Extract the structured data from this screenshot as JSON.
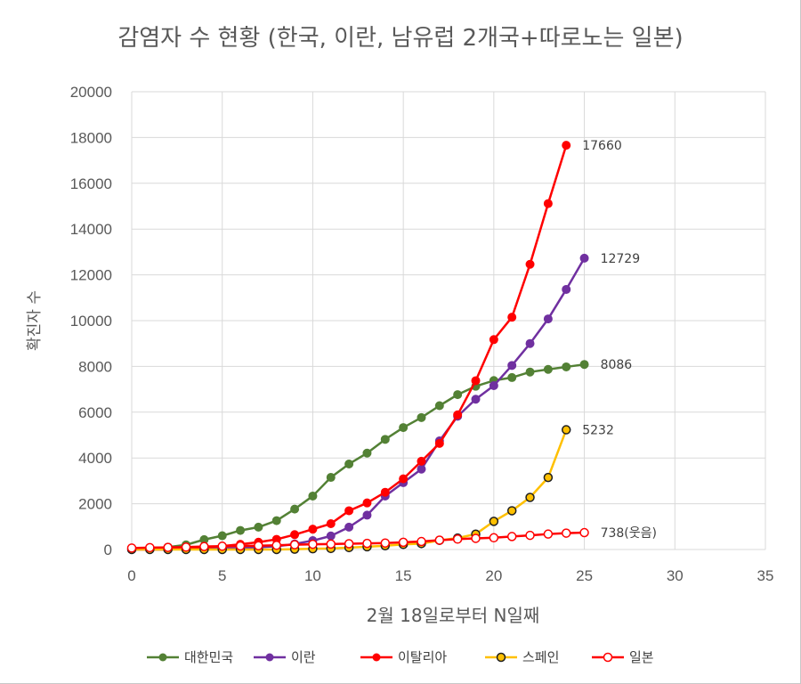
{
  "chart_data": {
    "type": "line",
    "title": "감염자 수 현황 (한국, 이란, 남유럽 2개국+따로노는 일본)",
    "xlabel": "2월 18일로부터 N일째",
    "ylabel": "확진자 수",
    "xlim": [
      0,
      35
    ],
    "ylim": [
      0,
      20000
    ],
    "xticks": [
      0,
      5,
      10,
      15,
      20,
      25,
      30,
      35
    ],
    "yticks": [
      0,
      2000,
      4000,
      6000,
      8000,
      10000,
      12000,
      14000,
      16000,
      18000,
      20000
    ],
    "grid": true,
    "legend_position": "bottom",
    "series": [
      {
        "name": "대한민국",
        "color": "#538135",
        "marker": "filled",
        "x": [
          0,
          1,
          2,
          3,
          4,
          5,
          6,
          7,
          8,
          9,
          10,
          11,
          12,
          13,
          14,
          15,
          16,
          17,
          18,
          19,
          20,
          21,
          22,
          23,
          24,
          25
        ],
        "values": [
          31,
          51,
          104,
          204,
          433,
          602,
          833,
          977,
          1261,
          1766,
          2337,
          3150,
          3736,
          4212,
          4812,
          5328,
          5766,
          6284,
          6767,
          7134,
          7382,
          7513,
          7755,
          7869,
          7979,
          8086
        ],
        "end_label": "8086"
      },
      {
        "name": "이란",
        "color": "#7030a0",
        "marker": "filled",
        "x": [
          0,
          1,
          2,
          3,
          4,
          5,
          6,
          7,
          8,
          9,
          10,
          11,
          12,
          13,
          14,
          15,
          16,
          17,
          18,
          19,
          20,
          21,
          22,
          23,
          24,
          25
        ],
        "values": [
          0,
          2,
          5,
          18,
          28,
          43,
          61,
          95,
          139,
          245,
          388,
          593,
          978,
          1501,
          2336,
          2922,
          3513,
          4747,
          5823,
          6566,
          7161,
          8042,
          9000,
          10075,
          11364,
          12729
        ],
        "end_label": "12729"
      },
      {
        "name": "이탈리아",
        "color": "#ff0000",
        "marker": "filled",
        "x": [
          0,
          1,
          2,
          3,
          4,
          5,
          6,
          7,
          8,
          9,
          10,
          11,
          12,
          13,
          14,
          15,
          16,
          17,
          18,
          19,
          20,
          21,
          22,
          23,
          24
        ],
        "values": [
          3,
          3,
          3,
          20,
          79,
          150,
          227,
          320,
          445,
          650,
          888,
          1128,
          1694,
          2036,
          2502,
          3089,
          3858,
          4636,
          5883,
          7375,
          9172,
          10149,
          12462,
          15113,
          17660
        ],
        "end_label": "17660"
      },
      {
        "name": "스페인",
        "color": "#ffc000",
        "marker": "ring",
        "x": [
          0,
          1,
          2,
          3,
          4,
          5,
          6,
          7,
          8,
          9,
          10,
          11,
          12,
          13,
          14,
          15,
          16,
          17,
          18,
          19,
          20,
          21,
          22,
          23,
          24
        ],
        "values": [
          2,
          2,
          2,
          2,
          2,
          2,
          2,
          2,
          2,
          15,
          32,
          45,
          84,
          120,
          165,
          222,
          259,
          400,
          500,
          673,
          1231,
          1695,
          2277,
          3146,
          5232
        ],
        "end_label": "5232"
      },
      {
        "name": "일본",
        "color": "#ff0000",
        "marker": "hollow",
        "x": [
          0,
          1,
          2,
          3,
          4,
          5,
          6,
          7,
          8,
          9,
          10,
          11,
          12,
          13,
          14,
          15,
          16,
          17,
          18,
          19,
          20,
          21,
          22,
          23,
          24,
          25
        ],
        "values": [
          65,
          85,
          93,
          105,
          132,
          144,
          156,
          164,
          186,
          210,
          230,
          239,
          254,
          268,
          284,
          317,
          349,
          408,
          455,
          488,
          514,
          568,
          620,
          675,
          716,
          738
        ],
        "end_label": "738(웃음)"
      }
    ]
  }
}
